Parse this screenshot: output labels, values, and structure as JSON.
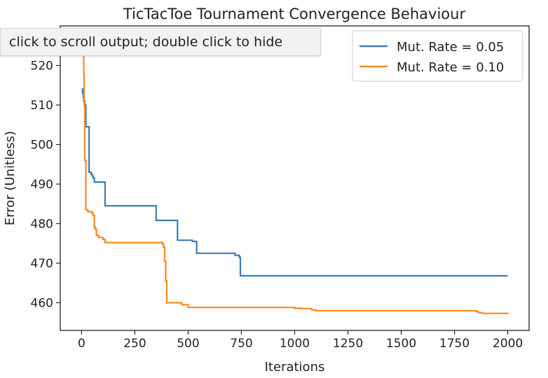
{
  "output_tooltip": {
    "text": "click to scroll output; double click to hide"
  },
  "chart_data": {
    "type": "line",
    "title": "TicTacToe Tournament Convergence Behaviour",
    "xlabel": "Iterations",
    "ylabel": "Error (Unitless)",
    "xlim": [
      -100,
      2100
    ],
    "ylim": [
      453,
      530
    ],
    "xticks": [
      0,
      250,
      500,
      750,
      1000,
      1250,
      1500,
      1750,
      2000
    ],
    "yticks": [
      460,
      470,
      480,
      490,
      500,
      510,
      520
    ],
    "legend_position": "top-right",
    "grid": false,
    "series": [
      {
        "name": "Mut. Rate = 0.05",
        "color": "#3c7db3",
        "step": true,
        "x": [
          0,
          3,
          5,
          8,
          10,
          15,
          20,
          35,
          45,
          50,
          55,
          60,
          70,
          75,
          110,
          115,
          350,
          355,
          450,
          455,
          520,
          540,
          545,
          720,
          740,
          745,
          2000
        ],
        "y": [
          514,
          514,
          513,
          512,
          511,
          510,
          504.5,
          493,
          492.5,
          492,
          491.5,
          490.5,
          490.5,
          490.5,
          484.5,
          484.5,
          480.8,
          480.8,
          475.8,
          475.8,
          475.5,
          472.5,
          472.5,
          472,
          471.5,
          466.8,
          466.8
        ]
      },
      {
        "name": "Mut. Rate = 0.10",
        "color": "#f58a1f",
        "step": true,
        "x": [
          0,
          3,
          5,
          8,
          10,
          12,
          15,
          20,
          30,
          50,
          55,
          60,
          65,
          70,
          80,
          90,
          100,
          110,
          120,
          380,
          385,
          390,
          395,
          400,
          460,
          470,
          500,
          900,
          1000,
          1030,
          1080,
          1100,
          1850,
          1860,
          1880,
          2000
        ],
        "y": [
          527,
          526,
          525,
          523,
          518,
          510,
          496,
          483.5,
          483,
          482.5,
          482,
          479,
          478.5,
          477,
          476.5,
          476.5,
          476,
          475.2,
          475.2,
          474.8,
          474,
          470.5,
          465.5,
          460,
          460,
          459.5,
          458.8,
          458.8,
          458.6,
          458.5,
          458.2,
          458,
          457.8,
          457.5,
          457.3,
          457.2
        ]
      }
    ]
  }
}
